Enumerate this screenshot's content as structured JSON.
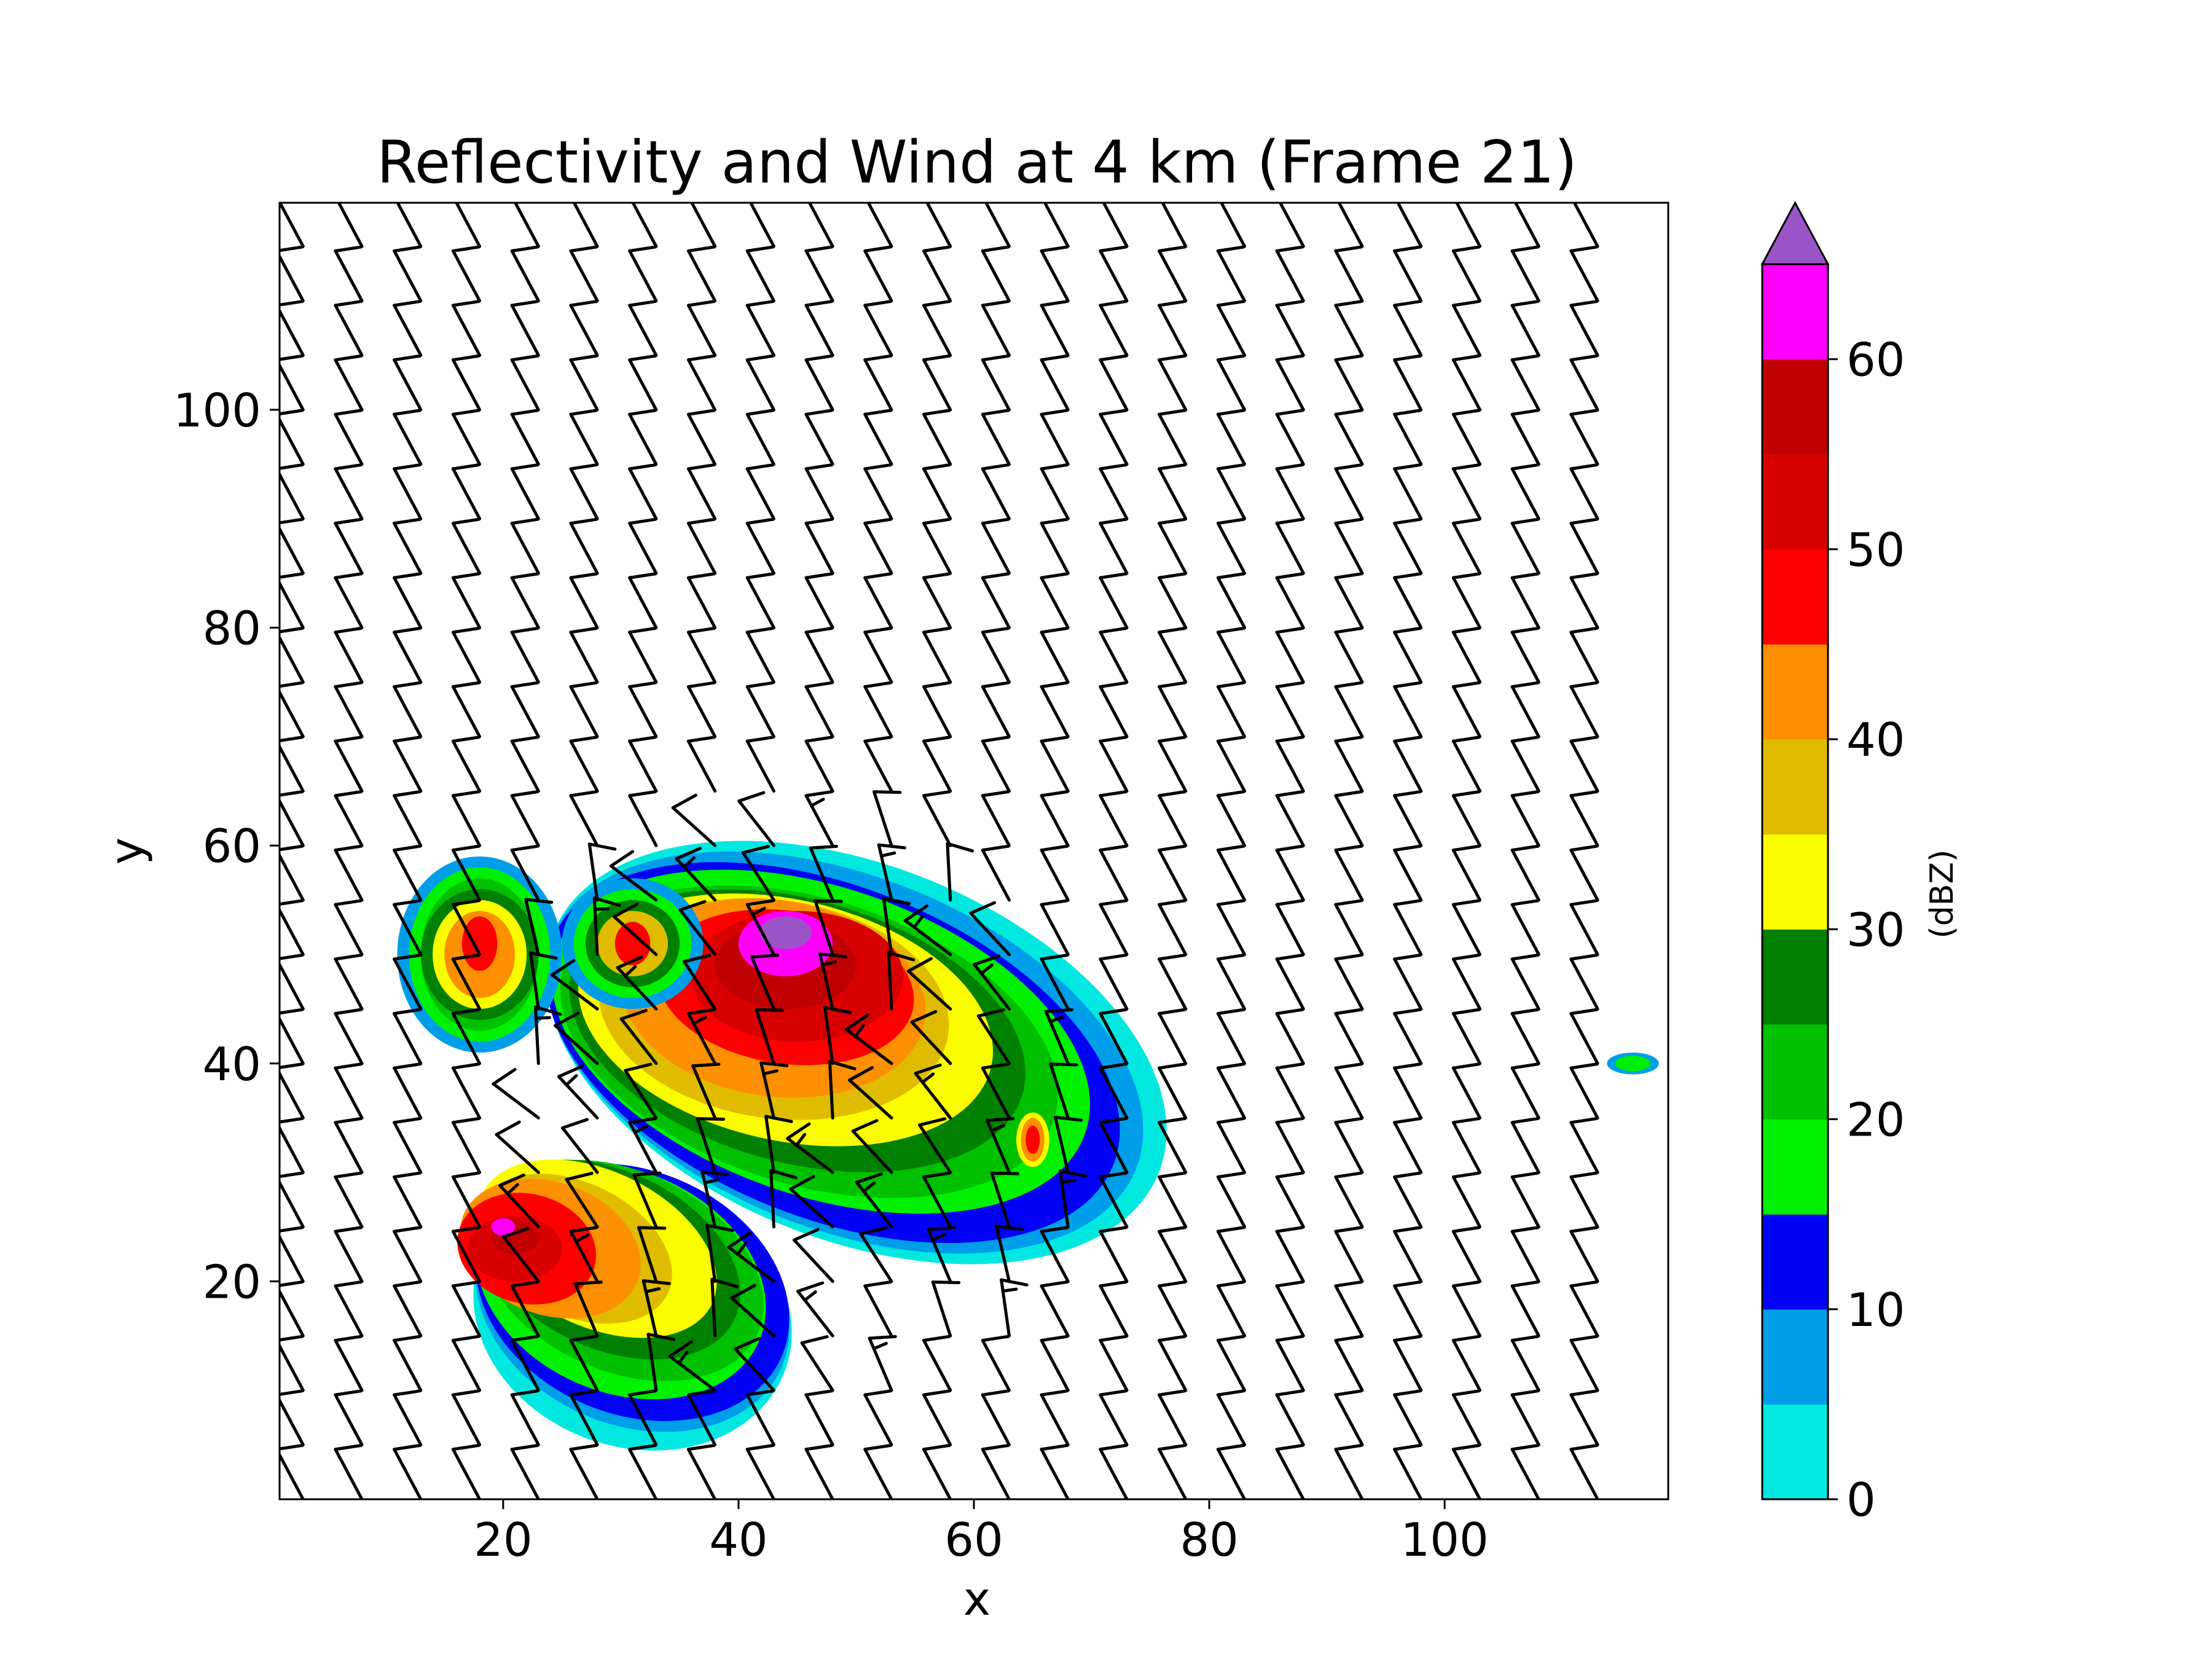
{
  "chart_data": {
    "type": "heatmap",
    "title": "Reflectivity and Wind at 4 km (Frame 21)",
    "xlabel": "x",
    "ylabel": "y",
    "xlim": [
      1,
      119
    ],
    "ylim": [
      0,
      119
    ],
    "xticks": [
      20,
      40,
      60,
      80,
      100
    ],
    "yticks": [
      20,
      40,
      60,
      80,
      100
    ],
    "grid": false,
    "colorbar": {
      "label": "(dBZ)",
      "levels": [
        0,
        5,
        10,
        15,
        20,
        25,
        30,
        35,
        40,
        45,
        50,
        55,
        60,
        65
      ],
      "ticks": [
        0,
        10,
        20,
        30,
        40,
        50,
        60
      ],
      "colors": [
        "#00e8e0",
        "#009ee8",
        "#0000f4",
        "#00f000",
        "#00c000",
        "#008000",
        "#fcfc00",
        "#e0bc00",
        "#fc9000",
        "#fc0000",
        "#d80000",
        "#c00000",
        "#fc00fc"
      ],
      "extend_color": "#9a54c8"
    },
    "reflectivity_cells": [
      {
        "x": 45,
        "y": 47,
        "peak_dbz": 65
      },
      {
        "x": 21,
        "y": 23,
        "peak_dbz": 60
      },
      {
        "x": 18,
        "y": 50,
        "peak_dbz": 50
      },
      {
        "x": 31,
        "y": 51,
        "peak_dbz": 50
      },
      {
        "x": 65,
        "y": 33,
        "peak_dbz": 50
      },
      {
        "x": 116,
        "y": 40,
        "peak_dbz": 20
      }
    ],
    "wind_barbs": {
      "grid_x_spacing": 5,
      "grid_y_spacing": 5,
      "ambient_direction": "south-southwesterly",
      "calm_points": [
        [
          5,
          60
        ],
        [
          35,
          20
        ],
        [
          40,
          15
        ],
        [
          45,
          15
        ],
        [
          40,
          10
        ]
      ]
    }
  }
}
